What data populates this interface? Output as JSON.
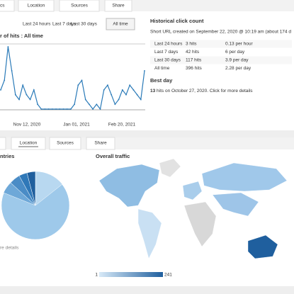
{
  "top_tabs": [
    "cs",
    "Location",
    "Sources",
    "Share"
  ],
  "range_buttons": [
    "Last 24 hours",
    "Last 7 days",
    "Last 30 days",
    "All time"
  ],
  "hits_chart": {
    "title": "r of hits : All time",
    "x_labels": [
      "Nov 12, 2020",
      "Jan 01, 2021",
      "Feb 20, 2021"
    ],
    "values": [
      4,
      6,
      13,
      8,
      3,
      2,
      5,
      3,
      2,
      4,
      1,
      0,
      0,
      0,
      0,
      0,
      0,
      0,
      0,
      0,
      1,
      5,
      6,
      2,
      1,
      0,
      1,
      0,
      4,
      5,
      3,
      1,
      2,
      4,
      3,
      5,
      4,
      3,
      2,
      8
    ]
  },
  "historical": {
    "title": "Historical click count",
    "created": "Short URL created on September 22, 2020 @ 10:19 am (about 174 d",
    "rows": [
      [
        "Last 24 hours",
        "3 hits",
        "0.13 per hour"
      ],
      [
        "Last 7 days",
        "42 hits",
        "6 per day"
      ],
      [
        "Last 30 days",
        "117 hits",
        "3.9 per day"
      ],
      [
        "All time",
        "396 hits",
        "2.28 per day"
      ]
    ]
  },
  "best_day": {
    "title": "Best day",
    "hits": "13",
    "text": "hits on October 27, 2020. Click for more details"
  },
  "bottom_tabs": [
    "Location",
    "Sources",
    "Share"
  ],
  "countries": {
    "title": "ntries",
    "link": "re details"
  },
  "traffic": {
    "title": "Overall traffic",
    "legend_min": "1",
    "legend_max": "241"
  }
}
